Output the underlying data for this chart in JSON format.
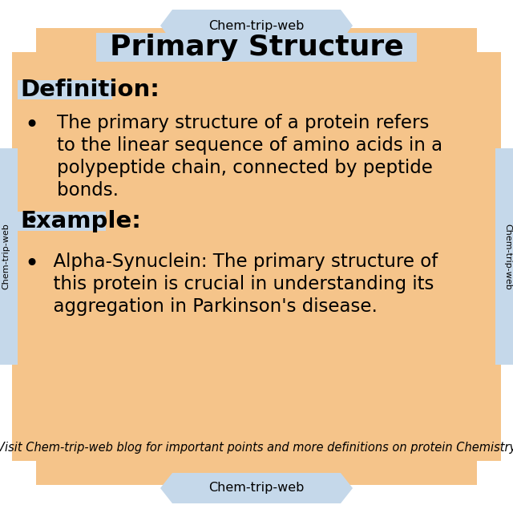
{
  "bg_color": "#ffffff",
  "main_bg": "#f5c48a",
  "tab_color": "#c5d8ea",
  "title": "Primary Structure",
  "tab_text": "Chem-trip-web",
  "side_text": "Chem-trip-web",
  "definition_label": "Definition",
  "example_label": "Example",
  "footer_text": "Visit Chem-trip-web blog for important points and more definitions on protein Chemistry",
  "main_font_size": 16.5,
  "title_font_size": 26,
  "label_font_size": 21,
  "footer_font_size": 10.5,
  "tab_font_size": 11.5
}
